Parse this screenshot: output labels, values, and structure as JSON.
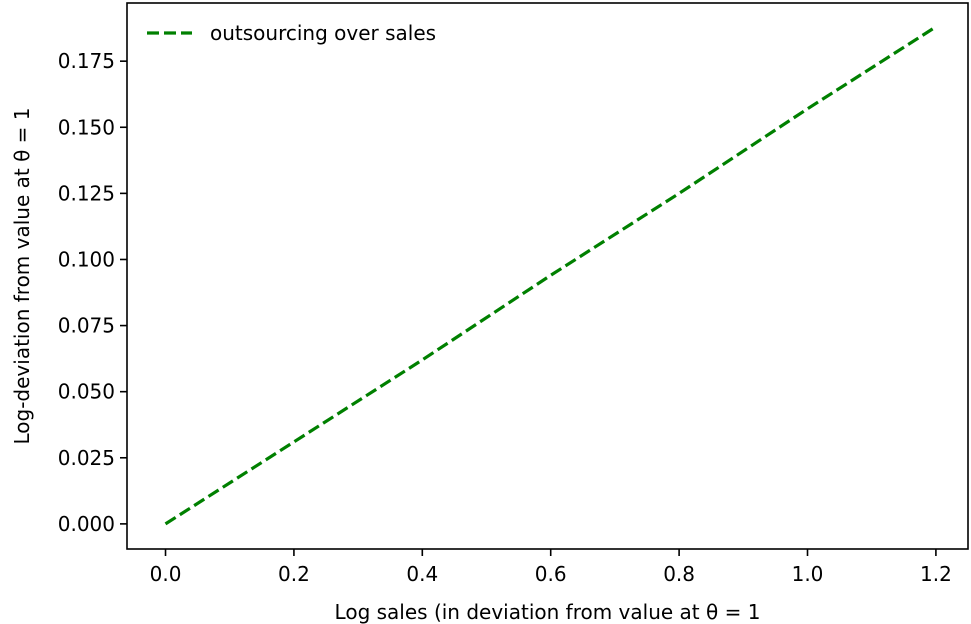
{
  "chart_data": {
    "type": "line",
    "title": "",
    "xlabel": "Log sales (in deviation from value at θ = 1",
    "ylabel": "Log-deviation from value at θ = 1",
    "xlim": [
      -0.06,
      1.25
    ],
    "ylim": [
      -0.0095,
      0.197
    ],
    "x_ticks": [
      0.0,
      0.2,
      0.4,
      0.6,
      0.8,
      1.0,
      1.2
    ],
    "x_tick_labels": [
      "0.0",
      "0.2",
      "0.4",
      "0.6",
      "0.8",
      "1.0",
      "1.2"
    ],
    "y_ticks": [
      0.0,
      0.025,
      0.05,
      0.075,
      0.1,
      0.125,
      0.15,
      0.175
    ],
    "y_tick_labels": [
      "0.000",
      "0.025",
      "0.050",
      "0.075",
      "0.100",
      "0.125",
      "0.150",
      "0.175"
    ],
    "grid": false,
    "legend_position": "upper-left",
    "series": [
      {
        "name": "outsourcing over sales",
        "color": "#008000",
        "line_style": "dashed",
        "x": [
          0.0,
          0.2,
          0.4,
          0.6,
          0.8,
          1.0,
          1.2
        ],
        "y": [
          0.0,
          0.031,
          0.062,
          0.094,
          0.125,
          0.157,
          0.188
        ]
      }
    ]
  }
}
